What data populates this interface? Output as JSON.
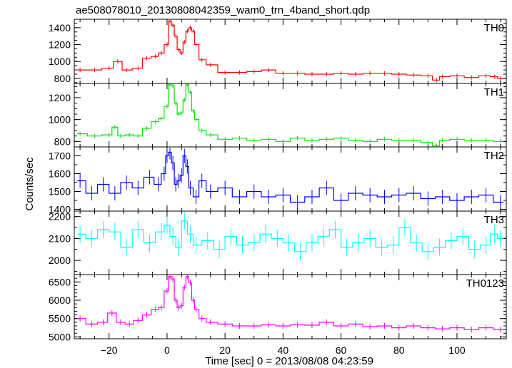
{
  "chart_data": {
    "type": "line",
    "title": "ae508078010_20130808042359_wam0_trn_4band_short.qdp",
    "xlabel": "Time [sec] 0 = 2013/08/08 04:23:59",
    "ylabel": "Counts/sec",
    "xlim": [
      -32,
      117
    ],
    "xticks": [
      -20,
      0,
      20,
      40,
      60,
      80,
      100
    ],
    "x_minor_step": 5,
    "grid": false,
    "panels": [
      {
        "name": "TH0",
        "color": "#ff0000",
        "ylim": [
          740,
          1500
        ],
        "yticks": [
          800,
          1000,
          1200,
          1400
        ],
        "y_minor_step": 50,
        "err": 25,
        "x": [
          -30,
          -25,
          -20,
          -17,
          -14,
          -10,
          -7,
          -4,
          -2,
          0,
          1,
          2,
          3,
          4,
          5,
          6,
          7,
          8,
          9,
          10,
          12,
          15,
          20,
          25,
          30,
          35,
          40,
          45,
          50,
          55,
          60,
          65,
          70,
          75,
          80,
          85,
          90,
          93,
          95,
          100,
          105,
          110,
          113,
          115
        ],
        "values": [
          900,
          900,
          920,
          1000,
          900,
          920,
          1040,
          1060,
          1100,
          1200,
          1480,
          1430,
          1300,
          1140,
          1100,
          1230,
          1360,
          1400,
          1360,
          1200,
          1020,
          960,
          870,
          870,
          880,
          900,
          860,
          860,
          850,
          850,
          860,
          850,
          860,
          860,
          850,
          840,
          830,
          780,
          820,
          830,
          810,
          830,
          820,
          800
        ]
      },
      {
        "name": "TH1",
        "color": "#00e600",
        "ylim": [
          750,
          1330
        ],
        "yticks": [
          800,
          1000,
          1200
        ],
        "y_minor_step": 50,
        "err": 20,
        "x": [
          -30,
          -25,
          -20,
          -18,
          -16,
          -13,
          -10,
          -7,
          -4,
          -2,
          0,
          1,
          2,
          3,
          4,
          5,
          6,
          7,
          8,
          9,
          10,
          12,
          15,
          20,
          25,
          30,
          35,
          40,
          45,
          50,
          55,
          60,
          65,
          70,
          75,
          80,
          85,
          90,
          93,
          95,
          100,
          105,
          110,
          115
        ],
        "values": [
          870,
          850,
          860,
          930,
          850,
          860,
          850,
          920,
          980,
          1010,
          1120,
          1320,
          1310,
          1150,
          1050,
          1060,
          1180,
          1320,
          1250,
          1080,
          1000,
          900,
          860,
          820,
          830,
          810,
          820,
          800,
          830,
          810,
          820,
          830,
          810,
          800,
          820,
          810,
          810,
          790,
          760,
          810,
          820,
          810,
          810,
          800
        ]
      },
      {
        "name": "TH2",
        "color": "#0000ff",
        "ylim": [
          1390,
          1750
        ],
        "yticks": [
          1400,
          1500,
          1600,
          1700
        ],
        "y_minor_step": 50,
        "err": 40,
        "x": [
          -30,
          -26,
          -22,
          -18,
          -14,
          -10,
          -6,
          -3,
          -1,
          0,
          1,
          2,
          3,
          4,
          5,
          6,
          7,
          8,
          10,
          12,
          15,
          20,
          25,
          30,
          35,
          40,
          45,
          50,
          55,
          60,
          65,
          70,
          75,
          80,
          85,
          90,
          95,
          100,
          105,
          110,
          115
        ],
        "values": [
          1560,
          1490,
          1540,
          1490,
          1550,
          1520,
          1580,
          1540,
          1600,
          1700,
          1720,
          1660,
          1540,
          1560,
          1590,
          1700,
          1640,
          1520,
          1470,
          1560,
          1500,
          1520,
          1470,
          1500,
          1470,
          1480,
          1440,
          1470,
          1520,
          1450,
          1490,
          1480,
          1470,
          1480,
          1490,
          1460,
          1470,
          1450,
          1470,
          1480,
          1440
        ]
      },
      {
        "name": "TH3",
        "color": "#00ffff",
        "ylim": [
          1935,
          2225
        ],
        "yticks": [
          2000,
          2100,
          2200
        ],
        "y_minor_step": 50,
        "err": 40,
        "x": [
          -30,
          -26,
          -22,
          -18,
          -14,
          -10,
          -6,
          -2,
          0,
          2,
          4,
          6,
          8,
          10,
          14,
          18,
          22,
          26,
          30,
          34,
          38,
          42,
          46,
          50,
          54,
          58,
          62,
          66,
          70,
          74,
          78,
          82,
          86,
          90,
          94,
          98,
          102,
          106,
          110,
          113,
          115
        ],
        "values": [
          2120,
          2100,
          2140,
          2130,
          2060,
          2140,
          2080,
          2130,
          2160,
          2110,
          2060,
          2180,
          2120,
          2070,
          2090,
          2050,
          2110,
          2070,
          2080,
          2120,
          2100,
          2080,
          2040,
          2080,
          2110,
          2140,
          2060,
          2080,
          2100,
          2060,
          2070,
          2150,
          2080,
          2040,
          2060,
          2090,
          2110,
          2050,
          2070,
          2120,
          2100
        ]
      },
      {
        "name": "TH0123",
        "color": "#ff00ff",
        "ylim": [
          4950,
          6700
        ],
        "yticks": [
          5000,
          5500,
          6000,
          6500
        ],
        "y_minor_step": 100,
        "err": 80,
        "x": [
          -30,
          -26,
          -22,
          -19,
          -16,
          -13,
          -10,
          -7,
          -4,
          -2,
          0,
          1,
          2,
          3,
          4,
          5,
          6,
          7,
          8,
          9,
          10,
          12,
          15,
          20,
          25,
          30,
          35,
          40,
          45,
          50,
          55,
          60,
          65,
          70,
          75,
          80,
          85,
          90,
          95,
          100,
          105,
          110,
          115
        ],
        "values": [
          5500,
          5350,
          5400,
          5650,
          5400,
          5350,
          5450,
          5600,
          5750,
          5800,
          6250,
          6650,
          6580,
          6000,
          5800,
          5850,
          6350,
          6650,
          6480,
          6000,
          5750,
          5500,
          5400,
          5350,
          5300,
          5300,
          5330,
          5300,
          5330,
          5320,
          5400,
          5300,
          5350,
          5280,
          5300,
          5250,
          5300,
          5250,
          5220,
          5250,
          5200,
          5250,
          5200
        ]
      }
    ]
  }
}
